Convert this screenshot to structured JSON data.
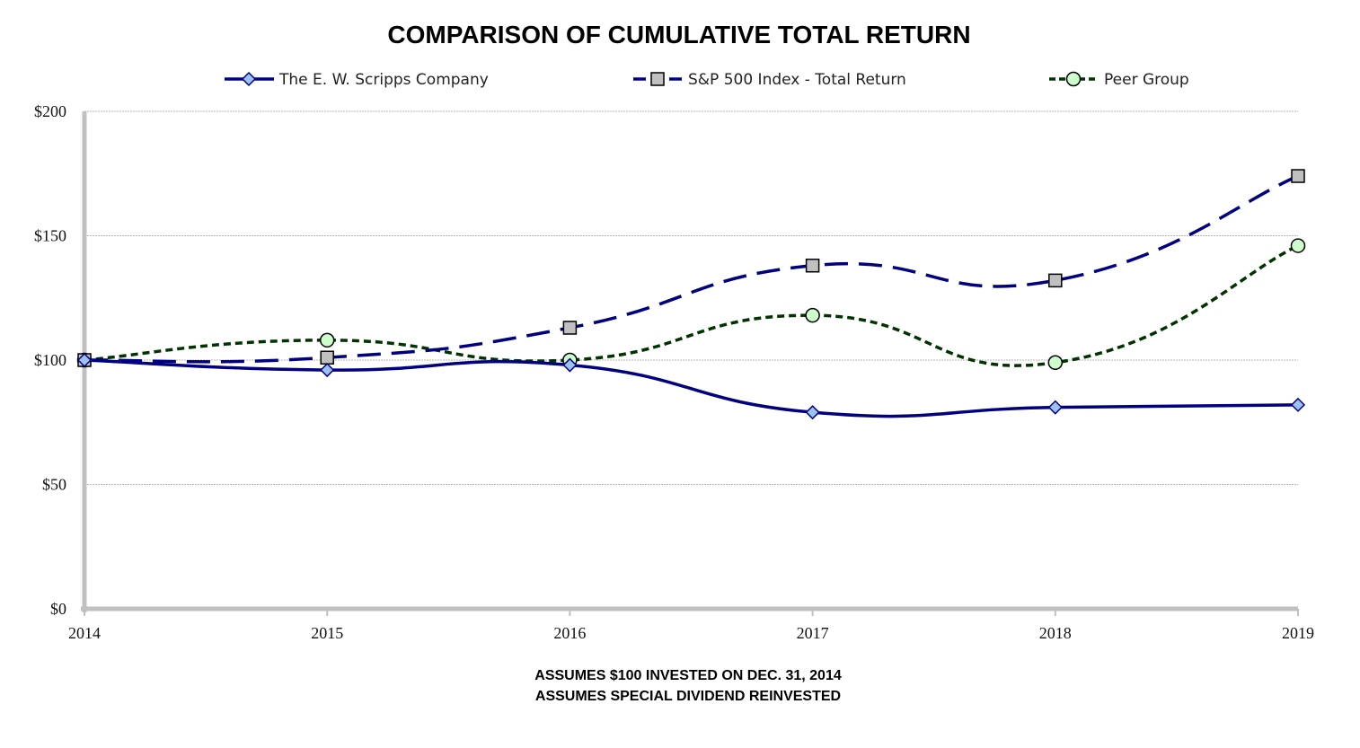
{
  "chart_data": {
    "type": "line",
    "title": "COMPARISON OF CUMULATIVE TOTAL RETURN",
    "xlabel": "",
    "ylabel": "",
    "categories": [
      "2014",
      "2015",
      "2016",
      "2017",
      "2018",
      "2019"
    ],
    "ylim": [
      0,
      200
    ],
    "yticks": [
      {
        "value": 0,
        "label": "$0"
      },
      {
        "value": 50,
        "label": "$50"
      },
      {
        "value": 100,
        "label": "$100"
      },
      {
        "value": 150,
        "label": "$150"
      },
      {
        "value": 200,
        "label": "$200"
      }
    ],
    "grid": true,
    "legend_position": "top",
    "series": [
      {
        "name": "The E. W. Scripps Company",
        "values": [
          100,
          96,
          98,
          79,
          81,
          82
        ],
        "color": "#000080",
        "marker": "diamond",
        "marker_fill": "#9cc3f0",
        "line_style": "solid"
      },
      {
        "name": "S&P 500 Index - Total Return",
        "values": [
          100,
          101,
          113,
          138,
          132,
          174
        ],
        "color": "#000080",
        "marker": "square",
        "marker_fill": "#c0c0c0",
        "line_style": "long-dash"
      },
      {
        "name": "Peer Group",
        "values": [
          100,
          108,
          100,
          118,
          99,
          146
        ],
        "color": "#003300",
        "marker": "circle",
        "marker_fill": "#ccffcc",
        "line_style": "short-dash"
      }
    ],
    "annotations": [
      "ASSUMES $100 INVESTED ON DEC. 31, 2014",
      "ASSUMES SPECIAL DIVIDEND REINVESTED"
    ]
  }
}
